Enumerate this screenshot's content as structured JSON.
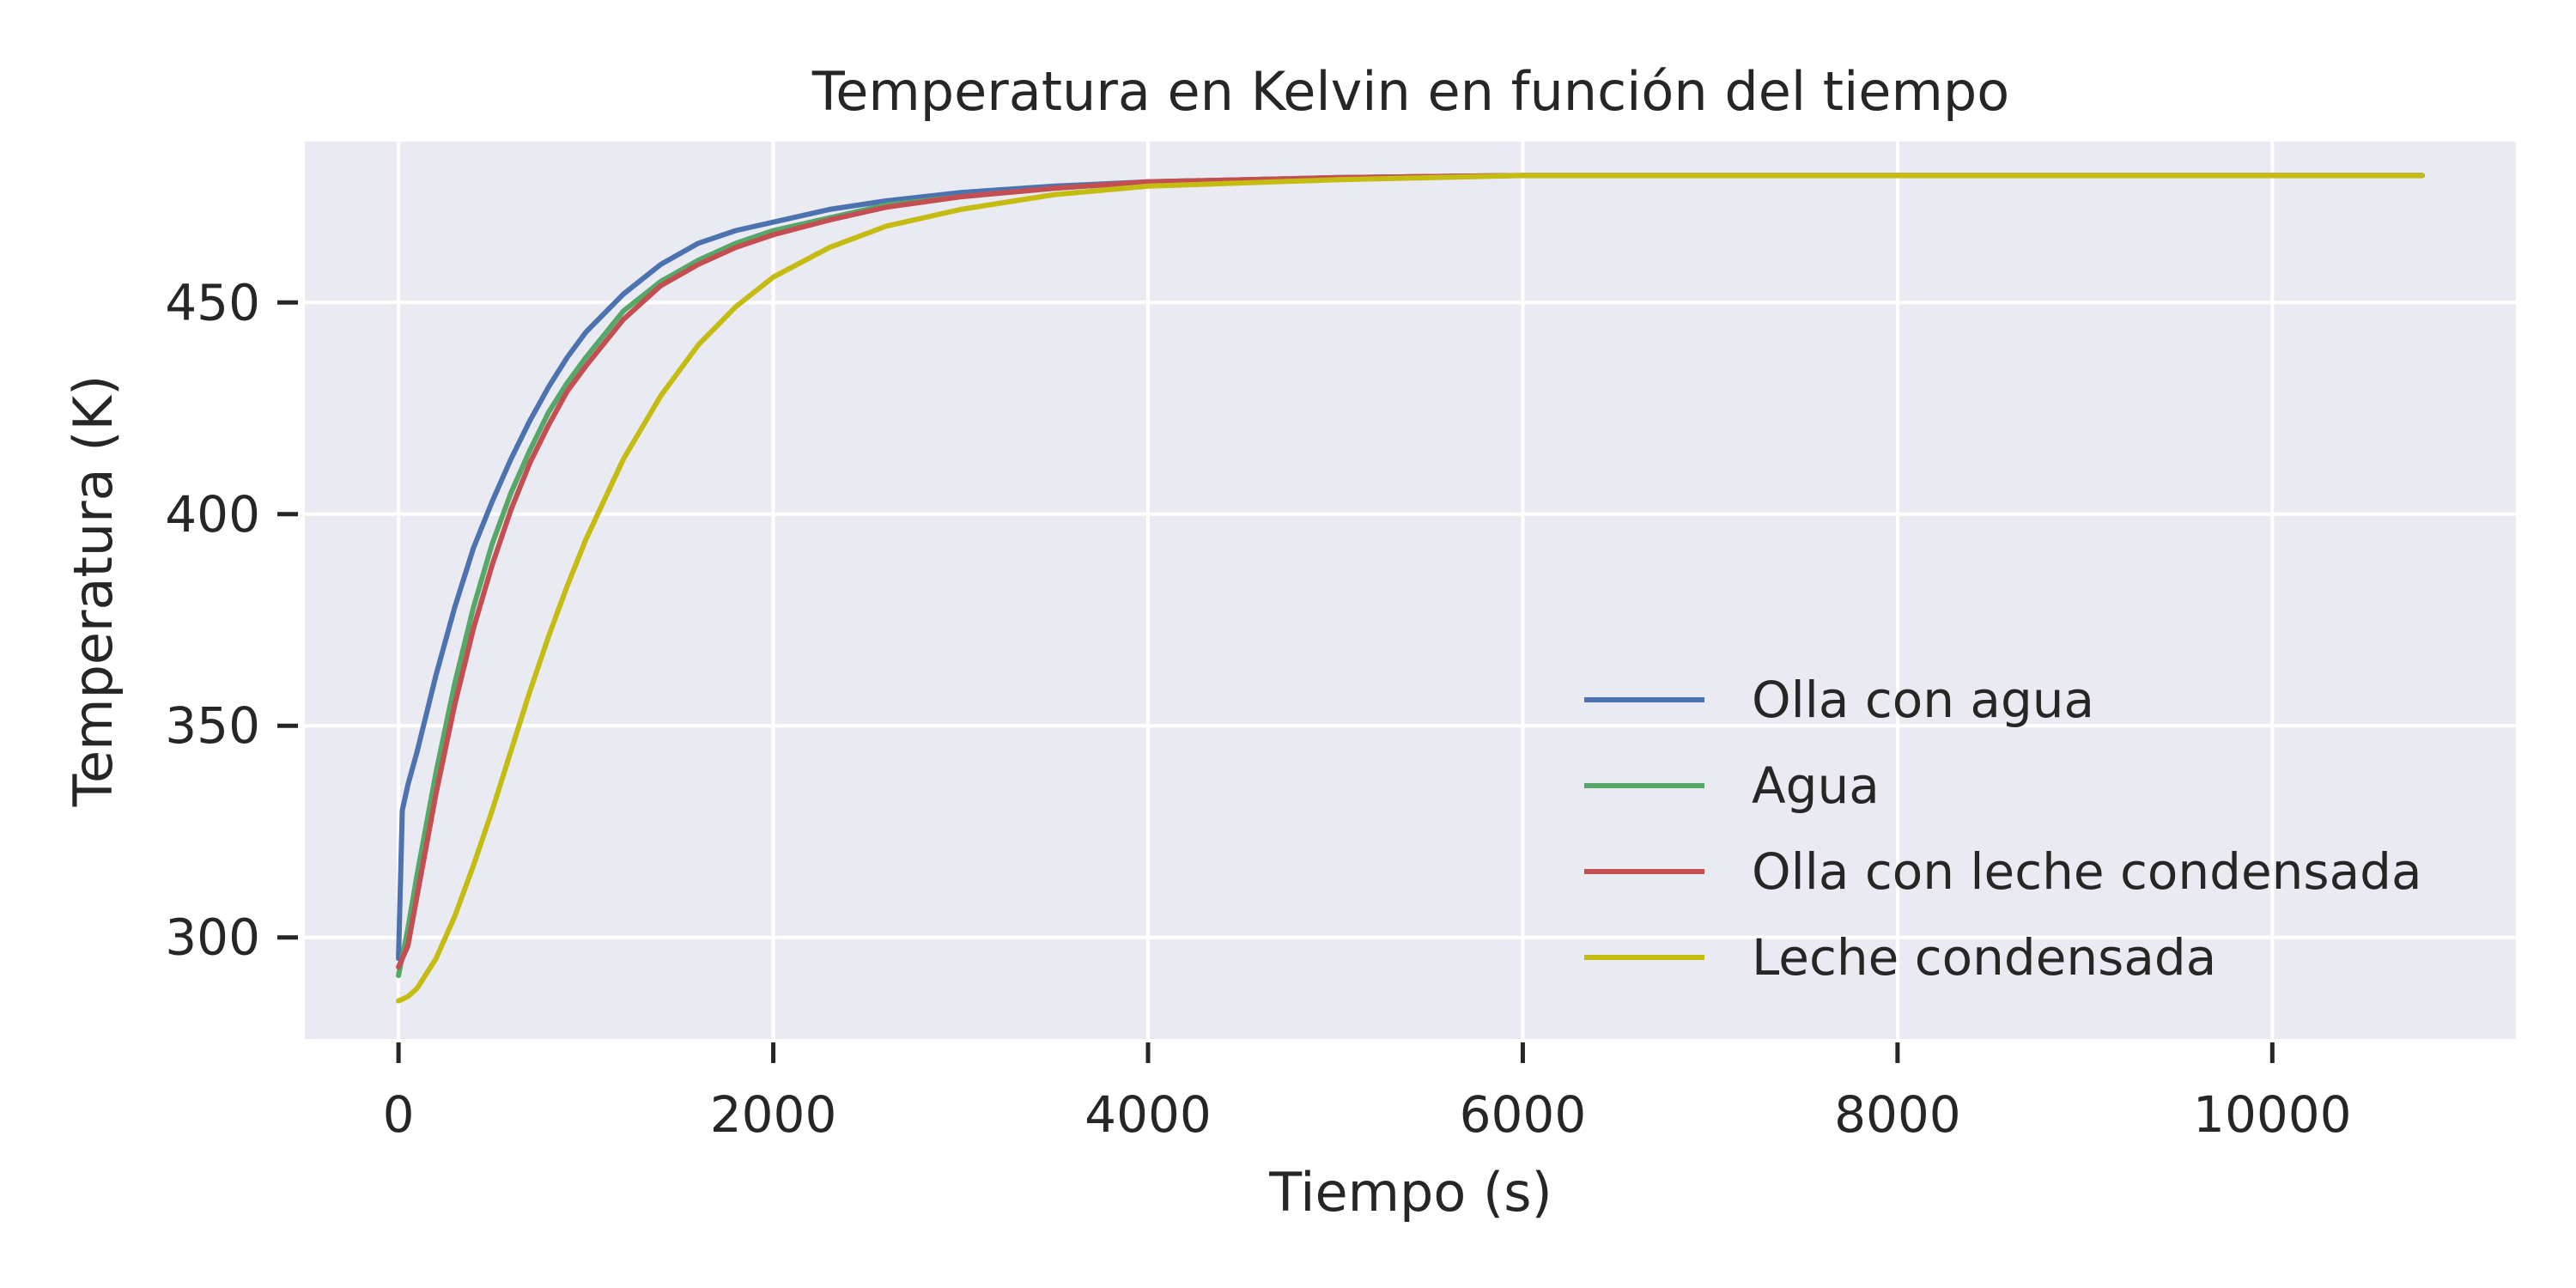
{
  "chart_data": {
    "type": "line",
    "title": "Temperatura en Kelvin en función del tiempo",
    "xlabel": "Tiempo (s)",
    "ylabel": "Temperatura (K)",
    "xlim": [
      -500,
      11300
    ],
    "ylim": [
      276,
      488
    ],
    "xticks": [
      0,
      2000,
      4000,
      6000,
      8000,
      10000
    ],
    "yticks": [
      300,
      350,
      400,
      450
    ],
    "grid": true,
    "legend_position": "lower-right",
    "series": [
      {
        "name": "Olla con agua",
        "color": "#4c72b0",
        "x": [
          0,
          20,
          50,
          100,
          200,
          300,
          400,
          500,
          600,
          700,
          800,
          900,
          1000,
          1200,
          1400,
          1600,
          1800,
          2000,
          2300,
          2600,
          3000,
          3500,
          4000,
          5000,
          6000,
          8000,
          10800
        ],
        "y": [
          295,
          330,
          336,
          344,
          362,
          378,
          392,
          403,
          413,
          422,
          430,
          437,
          443,
          452,
          459,
          464,
          467,
          469,
          472,
          474,
          476,
          477.5,
          478.5,
          479.5,
          480,
          480,
          480
        ]
      },
      {
        "name": "Agua",
        "color": "#55a868",
        "x": [
          0,
          50,
          100,
          200,
          300,
          400,
          500,
          600,
          700,
          800,
          900,
          1000,
          1200,
          1400,
          1600,
          1800,
          2000,
          2300,
          2600,
          3000,
          3500,
          4000,
          5000,
          6000,
          8000,
          10800
        ],
        "y": [
          291,
          302,
          315,
          339,
          360,
          378,
          393,
          405,
          415,
          424,
          431,
          437,
          448,
          455,
          460,
          464,
          467,
          470,
          473,
          475,
          477,
          478.5,
          479.5,
          480,
          480,
          480
        ]
      },
      {
        "name": "Olla con leche condensada",
        "color": "#c44e52",
        "x": [
          0,
          50,
          100,
          200,
          300,
          400,
          500,
          600,
          700,
          800,
          900,
          1000,
          1200,
          1400,
          1600,
          1800,
          2000,
          2300,
          2600,
          3000,
          3500,
          4000,
          5000,
          6000,
          8000,
          10800
        ],
        "y": [
          293,
          298,
          310,
          334,
          355,
          373,
          388,
          401,
          412,
          421,
          429,
          435,
          446,
          454,
          459,
          463,
          466,
          469.5,
          472.5,
          475,
          477,
          478.5,
          479.5,
          480,
          480,
          480
        ]
      },
      {
        "name": "Leche condensada",
        "color": "#c4bc10",
        "x": [
          0,
          50,
          100,
          200,
          300,
          400,
          500,
          600,
          700,
          800,
          900,
          1000,
          1200,
          1400,
          1600,
          1800,
          2000,
          2300,
          2600,
          3000,
          3500,
          4000,
          5000,
          6000,
          8000,
          10800
        ],
        "y": [
          285,
          286,
          288,
          295,
          305,
          317,
          330,
          344,
          358,
          371,
          383,
          394,
          413,
          428,
          440,
          449,
          456,
          463,
          468,
          472,
          475.5,
          477.5,
          479,
          480,
          480,
          480
        ]
      }
    ]
  }
}
